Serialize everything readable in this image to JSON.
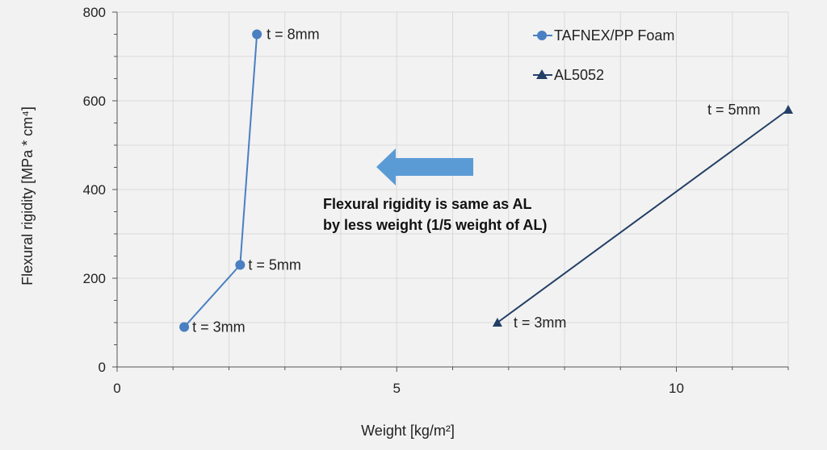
{
  "chart_data": {
    "type": "line",
    "title": "",
    "xlabel": "Weight [kg/m²]",
    "ylabel": "Flexural rigidity [MPa * cm⁴]",
    "xlim": [
      0,
      12
    ],
    "ylim": [
      0,
      800
    ],
    "xticks": [
      0,
      5,
      10
    ],
    "yticks": [
      0,
      200,
      400,
      600,
      800
    ],
    "grid": true,
    "legend_position": "top-right",
    "series": [
      {
        "name": "TAFNEX/PP Foam",
        "marker": "circle",
        "color": "#4a7fc1",
        "x": [
          1.2,
          2.2,
          2.5
        ],
        "y": [
          90,
          230,
          750
        ],
        "point_labels": [
          "t = 3mm",
          "t = 5mm",
          "t = 8mm"
        ]
      },
      {
        "name": "AL5052",
        "marker": "triangle",
        "color": "#243f66",
        "x": [
          6.8,
          12.0
        ],
        "y": [
          100,
          580
        ],
        "point_labels": [
          "t = 3mm",
          "t = 5mm"
        ]
      }
    ],
    "annotation": {
      "lines": [
        "Flexural rigidity is same as AL",
        "by less weight (1/5 weight of AL)"
      ],
      "arrow": "left",
      "arrow_color": "#5b9bd5"
    }
  }
}
